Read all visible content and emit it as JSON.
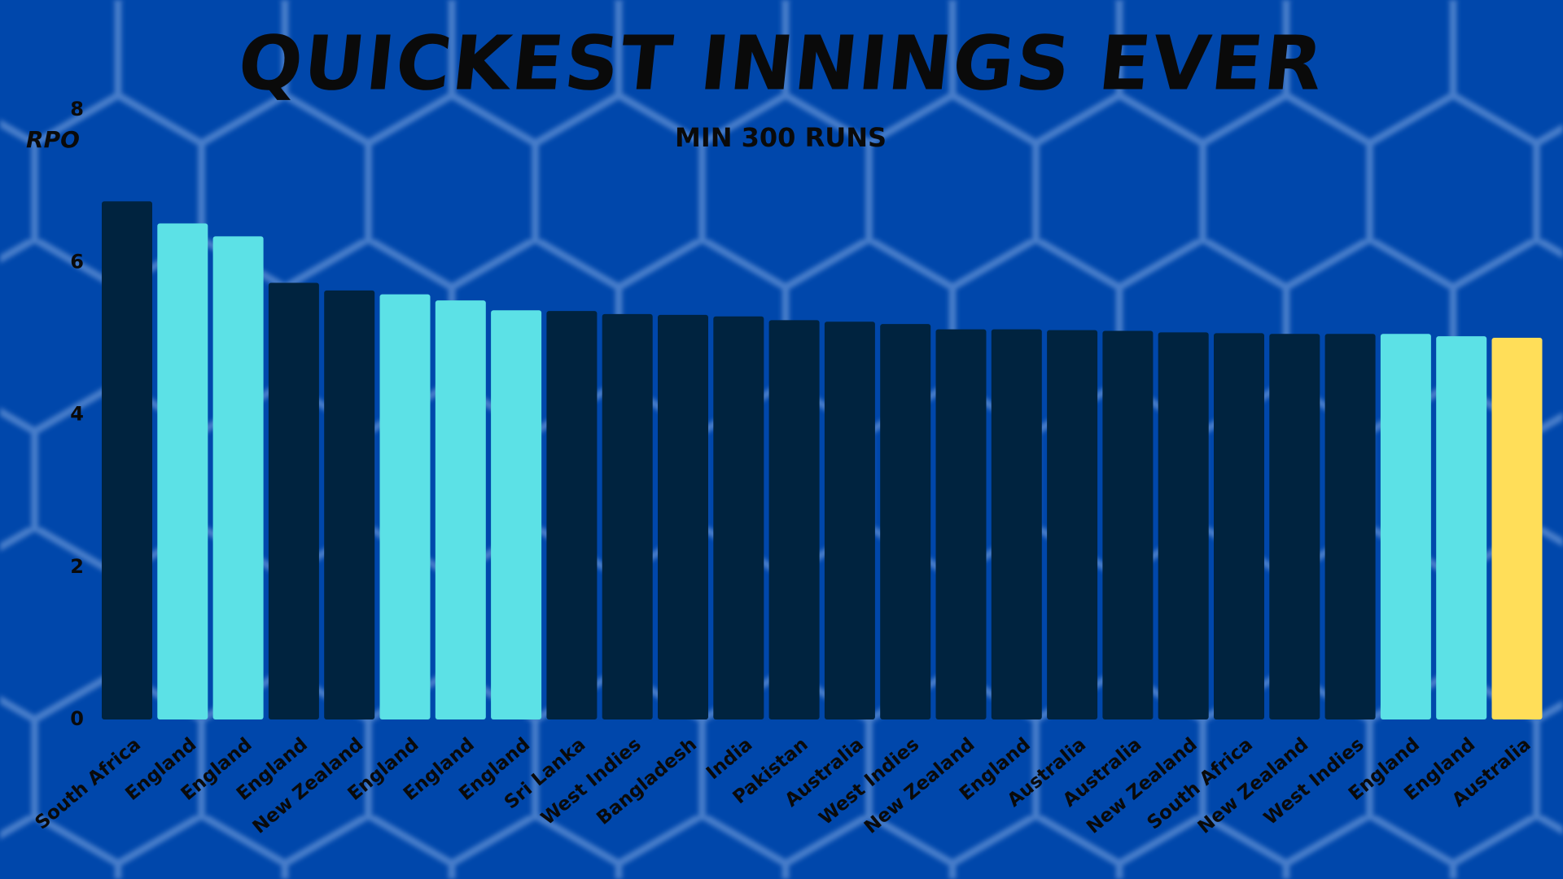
{
  "chart_data": {
    "type": "bar",
    "title": "QUICKEST INNINGS EVER",
    "subtitle": "MIN 300 RUNS",
    "y_label": "RPO",
    "categories": [
      "South Africa",
      "England",
      "England",
      "England",
      "New Zealand",
      "England",
      "England",
      "England",
      "Sri Lanka",
      "West Indies",
      "Bangladesh",
      "India",
      "Pakistan",
      "Australia",
      "West Indies",
      "New Zealand",
      "England",
      "Australia",
      "Australia",
      "New Zealand",
      "South Africa",
      "New Zealand",
      "West Indies",
      "England",
      "England",
      "Australia"
    ],
    "values": [
      6.8,
      6.51,
      6.34,
      5.73,
      5.63,
      5.58,
      5.5,
      5.37,
      5.36,
      5.32,
      5.31,
      5.29,
      5.24,
      5.22,
      5.19,
      5.12,
      5.12,
      5.11,
      5.1,
      5.08,
      5.07,
      5.06,
      5.06,
      5.06,
      5.03,
      5.01
    ],
    "colors": [
      "#00233f",
      "#5ce1e6",
      "#5ce1e6",
      "#00233f",
      "#00233f",
      "#5ce1e6",
      "#5ce1e6",
      "#5ce1e6",
      "#00233f",
      "#00233f",
      "#00233f",
      "#00233f",
      "#00233f",
      "#00233f",
      "#00233f",
      "#00233f",
      "#00233f",
      "#00233f",
      "#00233f",
      "#00233f",
      "#00233f",
      "#00233f",
      "#00233f",
      "#5ce1e6",
      "#5ce1e6",
      "#ffde59"
    ],
    "ylim": [
      0,
      8
    ],
    "yticks": [
      0,
      2,
      4,
      6,
      8
    ],
    "grid": false
  }
}
